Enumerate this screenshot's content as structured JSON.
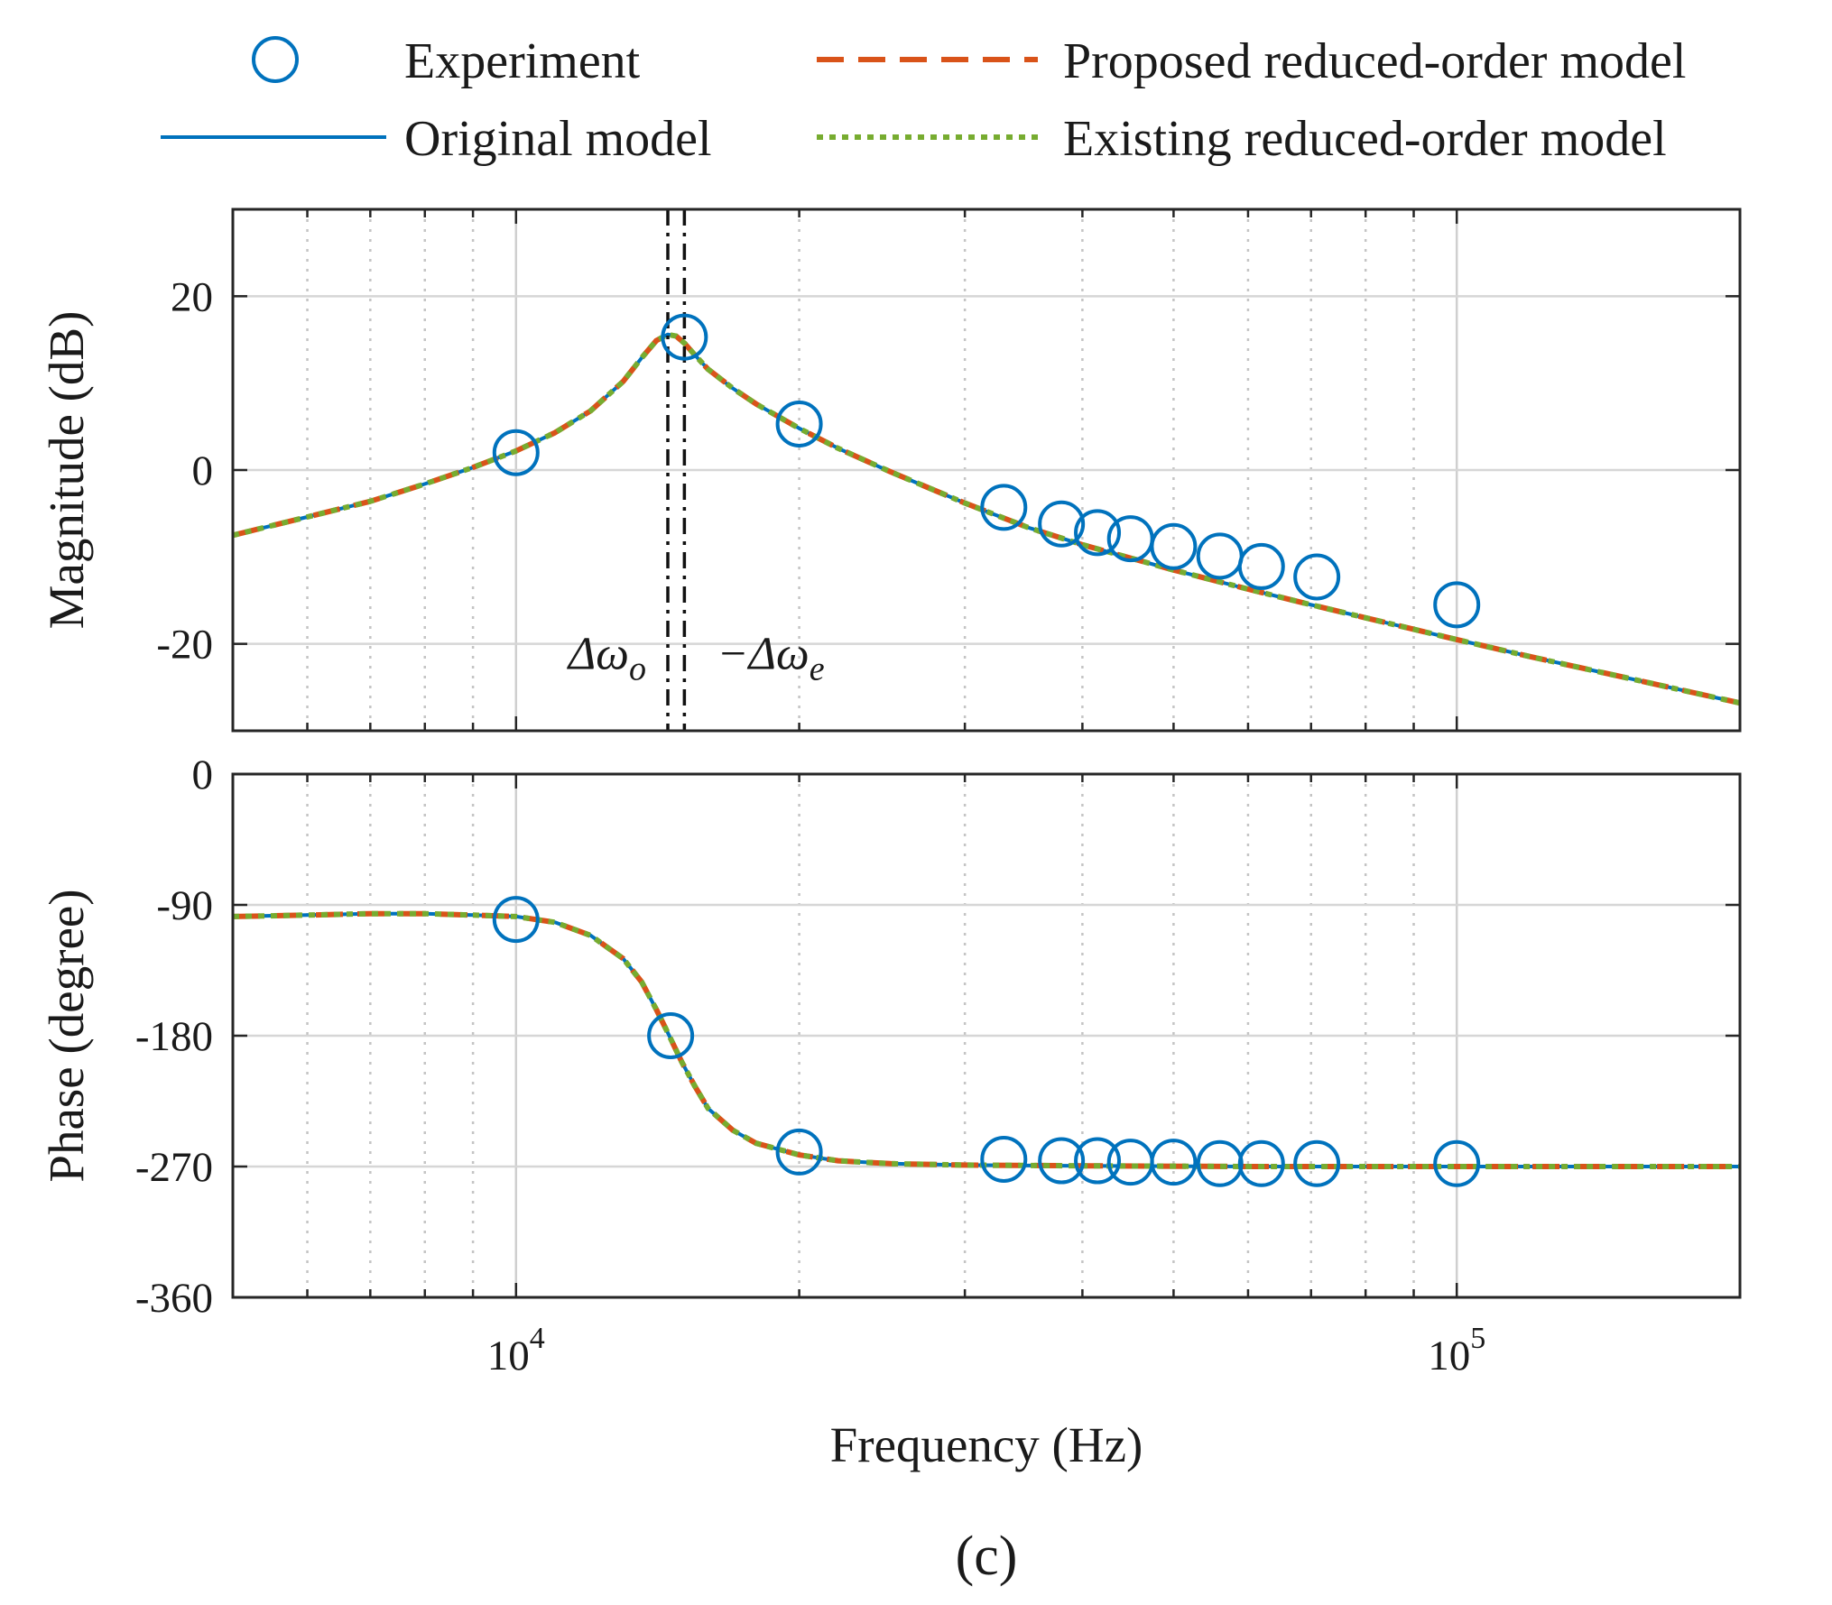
{
  "chart_data": {
    "type": "line",
    "subplots": [
      {
        "id": "magnitude",
        "ylabel": "Magnitude (dB)",
        "ylim": [
          -30,
          30
        ],
        "yticks": [
          20,
          0,
          -20
        ],
        "ytick_labels": [
          "20",
          "0",
          "-20"
        ],
        "xscale": "log",
        "xlim": [
          5000,
          200000
        ],
        "grid": true,
        "series": [
          {
            "name": "Original model",
            "color": "#0072BD",
            "style": "solid",
            "x": [
              5000,
              6000,
              7000,
              8000,
              9000,
              10000,
              11000,
              12000,
              13000,
              13600,
              14100,
              14500,
              14800,
              15100,
              15500,
              16000,
              17000,
              18000,
              20000,
              22000,
              25000,
              30000,
              35000,
              40000,
              50000,
              60000,
              70000,
              80000,
              100000,
              120000,
              150000,
              200000
            ],
            "y": [
              -7.5,
              -5.4,
              -3.6,
              -1.6,
              0.3,
              2.2,
              4.3,
              6.8,
              10.2,
              12.9,
              14.9,
              15.6,
              15.4,
              14.6,
              13.2,
              11.6,
              9.4,
              7.6,
              4.8,
              2.5,
              -0.2,
              -3.8,
              -6.6,
              -8.6,
              -11.5,
              -13.7,
              -15.5,
              -17.0,
              -19.5,
              -21.5,
              -23.8,
              -26.8
            ]
          },
          {
            "name": "Proposed reduced-order model",
            "color": "#D95319",
            "style": "dashed",
            "x": [
              5000,
              6000,
              7000,
              8000,
              9000,
              10000,
              11000,
              12000,
              13000,
              13600,
              14100,
              14500,
              14800,
              15100,
              15500,
              16000,
              17000,
              18000,
              20000,
              22000,
              25000,
              30000,
              35000,
              40000,
              50000,
              60000,
              70000,
              80000,
              100000,
              120000,
              150000,
              200000
            ],
            "y": [
              -7.5,
              -5.4,
              -3.6,
              -1.6,
              0.3,
              2.2,
              4.3,
              6.8,
              10.2,
              12.9,
              14.9,
              15.6,
              15.4,
              14.6,
              13.2,
              11.6,
              9.4,
              7.6,
              4.8,
              2.5,
              -0.2,
              -3.8,
              -6.6,
              -8.6,
              -11.5,
              -13.7,
              -15.5,
              -17.0,
              -19.5,
              -21.5,
              -23.8,
              -26.8
            ]
          },
          {
            "name": "Existing reduced-order model",
            "color": "#77AC30",
            "style": "dotted",
            "x": [
              5000,
              6000,
              7000,
              8000,
              9000,
              10000,
              11000,
              12000,
              13000,
              13600,
              14100,
              14500,
              14800,
              15100,
              15500,
              16000,
              17000,
              18000,
              20000,
              22000,
              25000,
              30000,
              35000,
              40000,
              50000,
              60000,
              70000,
              80000,
              100000,
              120000,
              150000,
              200000
            ],
            "y": [
              -7.5,
              -5.4,
              -3.6,
              -1.6,
              0.3,
              2.2,
              4.3,
              6.8,
              10.2,
              12.9,
              14.9,
              15.6,
              15.4,
              14.6,
              13.2,
              11.6,
              9.4,
              7.6,
              4.8,
              2.5,
              -0.2,
              -3.8,
              -6.6,
              -8.6,
              -11.5,
              -13.7,
              -15.5,
              -17.0,
              -19.5,
              -21.5,
              -23.8,
              -26.8
            ]
          }
        ],
        "experiment": {
          "name": "Experiment",
          "color": "#0072BD",
          "x": [
            10000,
            15100,
            20000,
            33000,
            38000,
            41500,
            45000,
            50000,
            56000,
            62000,
            71000,
            100000
          ],
          "y": [
            2.0,
            15.3,
            5.3,
            -4.3,
            -6.2,
            -7.2,
            -7.9,
            -8.8,
            -9.9,
            -11.1,
            -12.3,
            -15.5
          ]
        },
        "vlines": [
          {
            "x": 14500,
            "label": "Δω",
            "subscript": "o",
            "prefix": "",
            "style": "dashdot"
          },
          {
            "x": 15100,
            "label": "Δω",
            "subscript": "e",
            "prefix": "−",
            "style": "dashdot"
          }
        ]
      },
      {
        "id": "phase",
        "ylabel": "Phase (degree)",
        "ylim": [
          -360,
          0
        ],
        "yticks": [
          0,
          -90,
          -180,
          -270,
          -360
        ],
        "ytick_labels": [
          "0",
          "-90",
          "-180",
          "-270",
          "-360"
        ],
        "xscale": "log",
        "xlim": [
          5000,
          200000
        ],
        "xlabel": "Frequency (Hz)",
        "xticks": [
          10000,
          100000
        ],
        "xtick_labels": [
          {
            "base": "10",
            "exp": "4"
          },
          {
            "base": "10",
            "exp": "5"
          }
        ],
        "grid": true,
        "series": [
          {
            "name": "Original model",
            "color": "#0072BD",
            "style": "solid",
            "x": [
              5000,
              6000,
              7000,
              8000,
              9000,
              10000,
              11000,
              12000,
              13000,
              13600,
              14100,
              14500,
              15000,
              15500,
              16000,
              17000,
              18000,
              20000,
              22000,
              25000,
              30000,
              40000,
              60000,
              100000,
              200000
            ],
            "y": [
              -98,
              -97,
              -96,
              -96,
              -97,
              -98,
              -102,
              -111,
              -127,
              -143,
              -162,
              -178,
              -198,
              -215,
              -230,
              -245,
              -254,
              -262,
              -266,
              -268,
              -269,
              -269.5,
              -270,
              -270,
              -270
            ]
          },
          {
            "name": "Proposed reduced-order model",
            "color": "#D95319",
            "style": "dashed",
            "x": [
              5000,
              6000,
              7000,
              8000,
              9000,
              10000,
              11000,
              12000,
              13000,
              13600,
              14100,
              14500,
              15000,
              15500,
              16000,
              17000,
              18000,
              20000,
              22000,
              25000,
              30000,
              40000,
              60000,
              100000,
              200000
            ],
            "y": [
              -98,
              -97,
              -96,
              -96,
              -97,
              -98,
              -102,
              -111,
              -127,
              -143,
              -162,
              -178,
              -198,
              -215,
              -230,
              -245,
              -254,
              -262,
              -266,
              -268,
              -269,
              -269.5,
              -270,
              -270,
              -270
            ]
          },
          {
            "name": "Existing reduced-order model",
            "color": "#77AC30",
            "style": "dotted",
            "x": [
              5000,
              6000,
              7000,
              8000,
              9000,
              10000,
              11000,
              12000,
              13000,
              13600,
              14100,
              14500,
              15000,
              15500,
              16000,
              17000,
              18000,
              20000,
              22000,
              25000,
              30000,
              40000,
              60000,
              100000,
              200000
            ],
            "y": [
              -98,
              -97,
              -96,
              -96,
              -97,
              -98,
              -102,
              -111,
              -127,
              -143,
              -162,
              -178,
              -198,
              -215,
              -230,
              -245,
              -254,
              -262,
              -266,
              -268,
              -269,
              -269.5,
              -270,
              -270,
              -270
            ]
          }
        ],
        "experiment": {
          "name": "Experiment",
          "color": "#0072BD",
          "x": [
            10000,
            14600,
            20000,
            33000,
            38000,
            41500,
            45000,
            50000,
            56000,
            62000,
            71000,
            100000
          ],
          "y": [
            -100,
            -180,
            -260,
            -265,
            -266,
            -266,
            -267,
            -267,
            -268,
            -268,
            -268,
            -268
          ]
        }
      }
    ],
    "legend": {
      "position": "top",
      "entries": [
        {
          "label": "Experiment",
          "color": "#0072BD",
          "marker": "circle"
        },
        {
          "label": "Proposed reduced-order model",
          "color": "#D95319",
          "style": "dashed"
        },
        {
          "label": "Original model",
          "color": "#0072BD",
          "style": "solid"
        },
        {
          "label": "Existing reduced-order model",
          "color": "#77AC30",
          "style": "dotted"
        }
      ]
    },
    "panel_label": "(c)"
  }
}
